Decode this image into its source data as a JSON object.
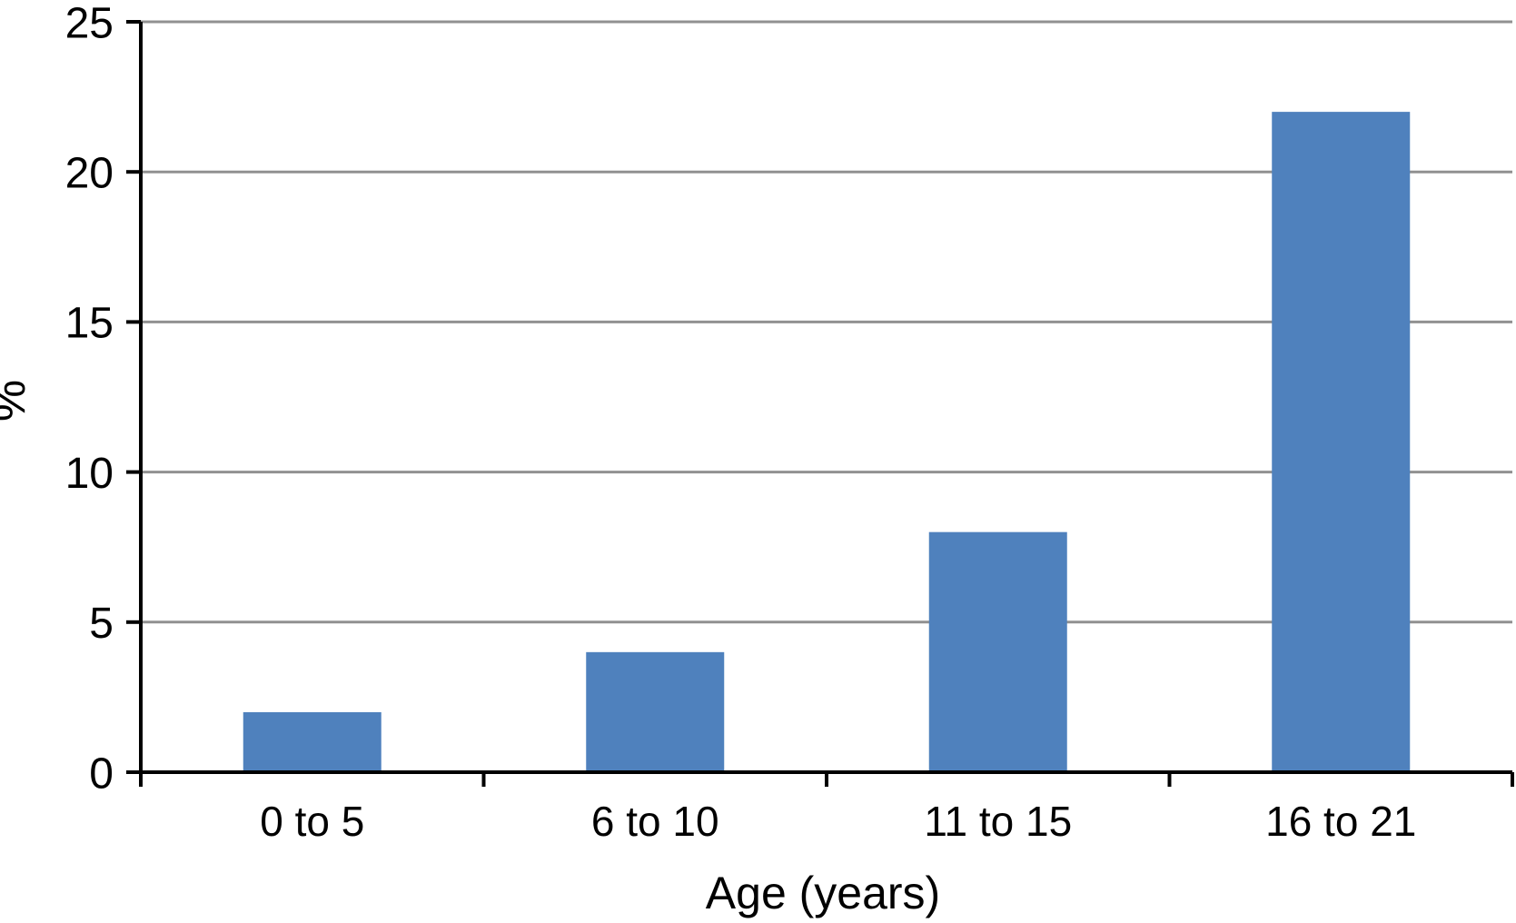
{
  "chart_data": {
    "type": "bar",
    "categories": [
      "0 to 5",
      "6 to 10",
      "11 to 15",
      "16 to 21"
    ],
    "values": [
      2,
      4,
      8,
      22
    ],
    "title": "",
    "xlabel": "Age (years)",
    "ylabel": "%",
    "ylim": [
      0,
      25
    ],
    "yticks": [
      0,
      5,
      10,
      15,
      20,
      25
    ],
    "grid": true,
    "legend_position": "none",
    "colors": {
      "bar": "#4f81bd",
      "gridline": "#919191",
      "axis": "#000000",
      "label": "#000000",
      "background": "#ffffff"
    }
  }
}
